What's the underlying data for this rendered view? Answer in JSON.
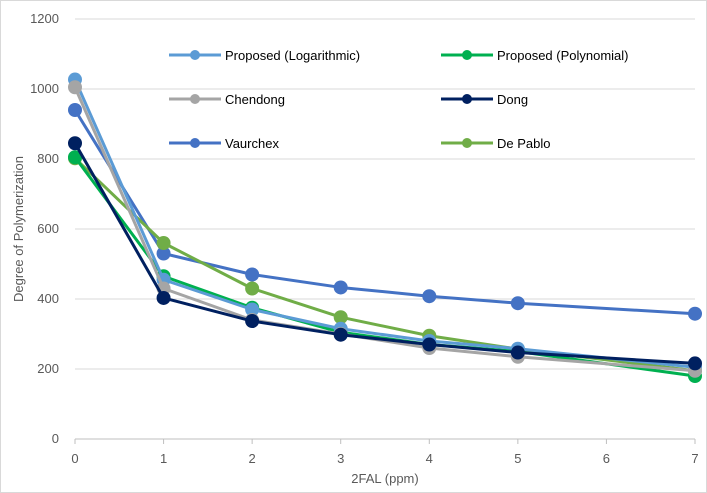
{
  "chart_data": {
    "type": "line",
    "title": "",
    "xlabel": "2FAL (ppm)",
    "ylabel": "Degree of Polymerization",
    "x": [
      0,
      1,
      2,
      3,
      4,
      5,
      6,
      7
    ],
    "x_ticks": [
      "0",
      "1",
      "2",
      "3",
      "4",
      "5",
      "6",
      "7"
    ],
    "y_ticks": [
      "0",
      "200",
      "400",
      "600",
      "800",
      "1000",
      "1200"
    ],
    "xlim": [
      0,
      7
    ],
    "ylim": [
      0,
      1200
    ],
    "grid": true,
    "legend_position": "inside-top",
    "series": [
      {
        "name": "Proposed (Logarithmic)",
        "color": "#5b9bd5",
        "points": [
          [
            0,
            1027
          ],
          [
            1,
            455
          ],
          [
            2,
            370
          ],
          [
            3,
            315
          ],
          [
            4,
            280
          ],
          [
            5,
            258
          ],
          [
            7,
            205
          ]
        ]
      },
      {
        "name": "Proposed (Polynomial)",
        "color": "#00b050",
        "points": [
          [
            0,
            805
          ],
          [
            1,
            465
          ],
          [
            2,
            375
          ],
          [
            3,
            305
          ],
          [
            4,
            270
          ],
          [
            5,
            250
          ],
          [
            7,
            180
          ]
        ]
      },
      {
        "name": "Chendong",
        "color": "#a5a5a5",
        "points": [
          [
            0,
            1005
          ],
          [
            1,
            430
          ],
          [
            2,
            340
          ],
          [
            3,
            300
          ],
          [
            4,
            260
          ],
          [
            5,
            235
          ],
          [
            7,
            195
          ]
        ]
      },
      {
        "name": "Dong",
        "color": "#002060",
        "points": [
          [
            0,
            845
          ],
          [
            1,
            403
          ],
          [
            2,
            337
          ],
          [
            3,
            298
          ],
          [
            4,
            270
          ],
          [
            5,
            247
          ],
          [
            7,
            216
          ]
        ]
      },
      {
        "name": "Vaurchex",
        "color": "#4472c4",
        "points": [
          [
            0,
            940
          ],
          [
            1,
            530
          ],
          [
            2,
            470
          ],
          [
            3,
            433
          ],
          [
            4,
            408
          ],
          [
            5,
            388
          ],
          [
            7,
            358
          ]
        ]
      },
      {
        "name": "De Pablo",
        "color": "#70ad47",
        "points": [
          [
            0,
            802
          ],
          [
            1,
            560
          ],
          [
            2,
            430
          ],
          [
            3,
            348
          ],
          [
            4,
            295
          ],
          [
            5,
            257
          ],
          [
            7,
            195
          ]
        ]
      }
    ]
  }
}
